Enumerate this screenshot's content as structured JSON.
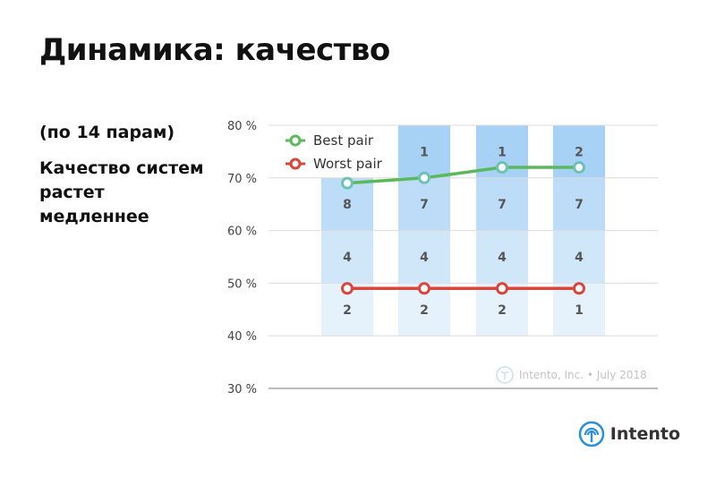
{
  "title": "Динамика: качество",
  "subtitle": "(по 14 парам)",
  "note": "Качество систем растет медленнее",
  "watermark": "Intento, Inc. • July 2018",
  "logo_text": "Intento",
  "chart_data": {
    "type": "bar",
    "y_ticks": [
      "30 %",
      "40 %",
      "50 %",
      "60 %",
      "70 %",
      "80 %"
    ],
    "ylim": [
      30,
      80
    ],
    "grid": true,
    "categories_count": 4,
    "segments": [
      {
        "from": 40,
        "to": 50,
        "color": "#e5f2fc",
        "counts": [
          "2",
          "2",
          "2",
          "1"
        ]
      },
      {
        "from": 50,
        "to": 60,
        "color": "#d0e7fa",
        "counts": [
          "4",
          "4",
          "4",
          "4"
        ]
      },
      {
        "from": 60,
        "to": 70,
        "color": "#bcdcf8",
        "counts": [
          "8",
          "7",
          "7",
          "7"
        ]
      },
      {
        "from": 70,
        "to": 80,
        "color": "#a7d1f5",
        "counts": [
          "",
          "1",
          "1",
          "2"
        ]
      }
    ],
    "bar_tops": [
      70,
      80,
      80,
      80
    ],
    "series": [
      {
        "name": "Best pair",
        "color": "#5cb85c",
        "marker_color": "#6cc3b4",
        "values": [
          69,
          70,
          72,
          72
        ]
      },
      {
        "name": "Worst pair",
        "color": "#d9453a",
        "marker_color": "#d9453a",
        "values": [
          49,
          49,
          49,
          49
        ]
      }
    ],
    "legend_position": "top-left"
  }
}
